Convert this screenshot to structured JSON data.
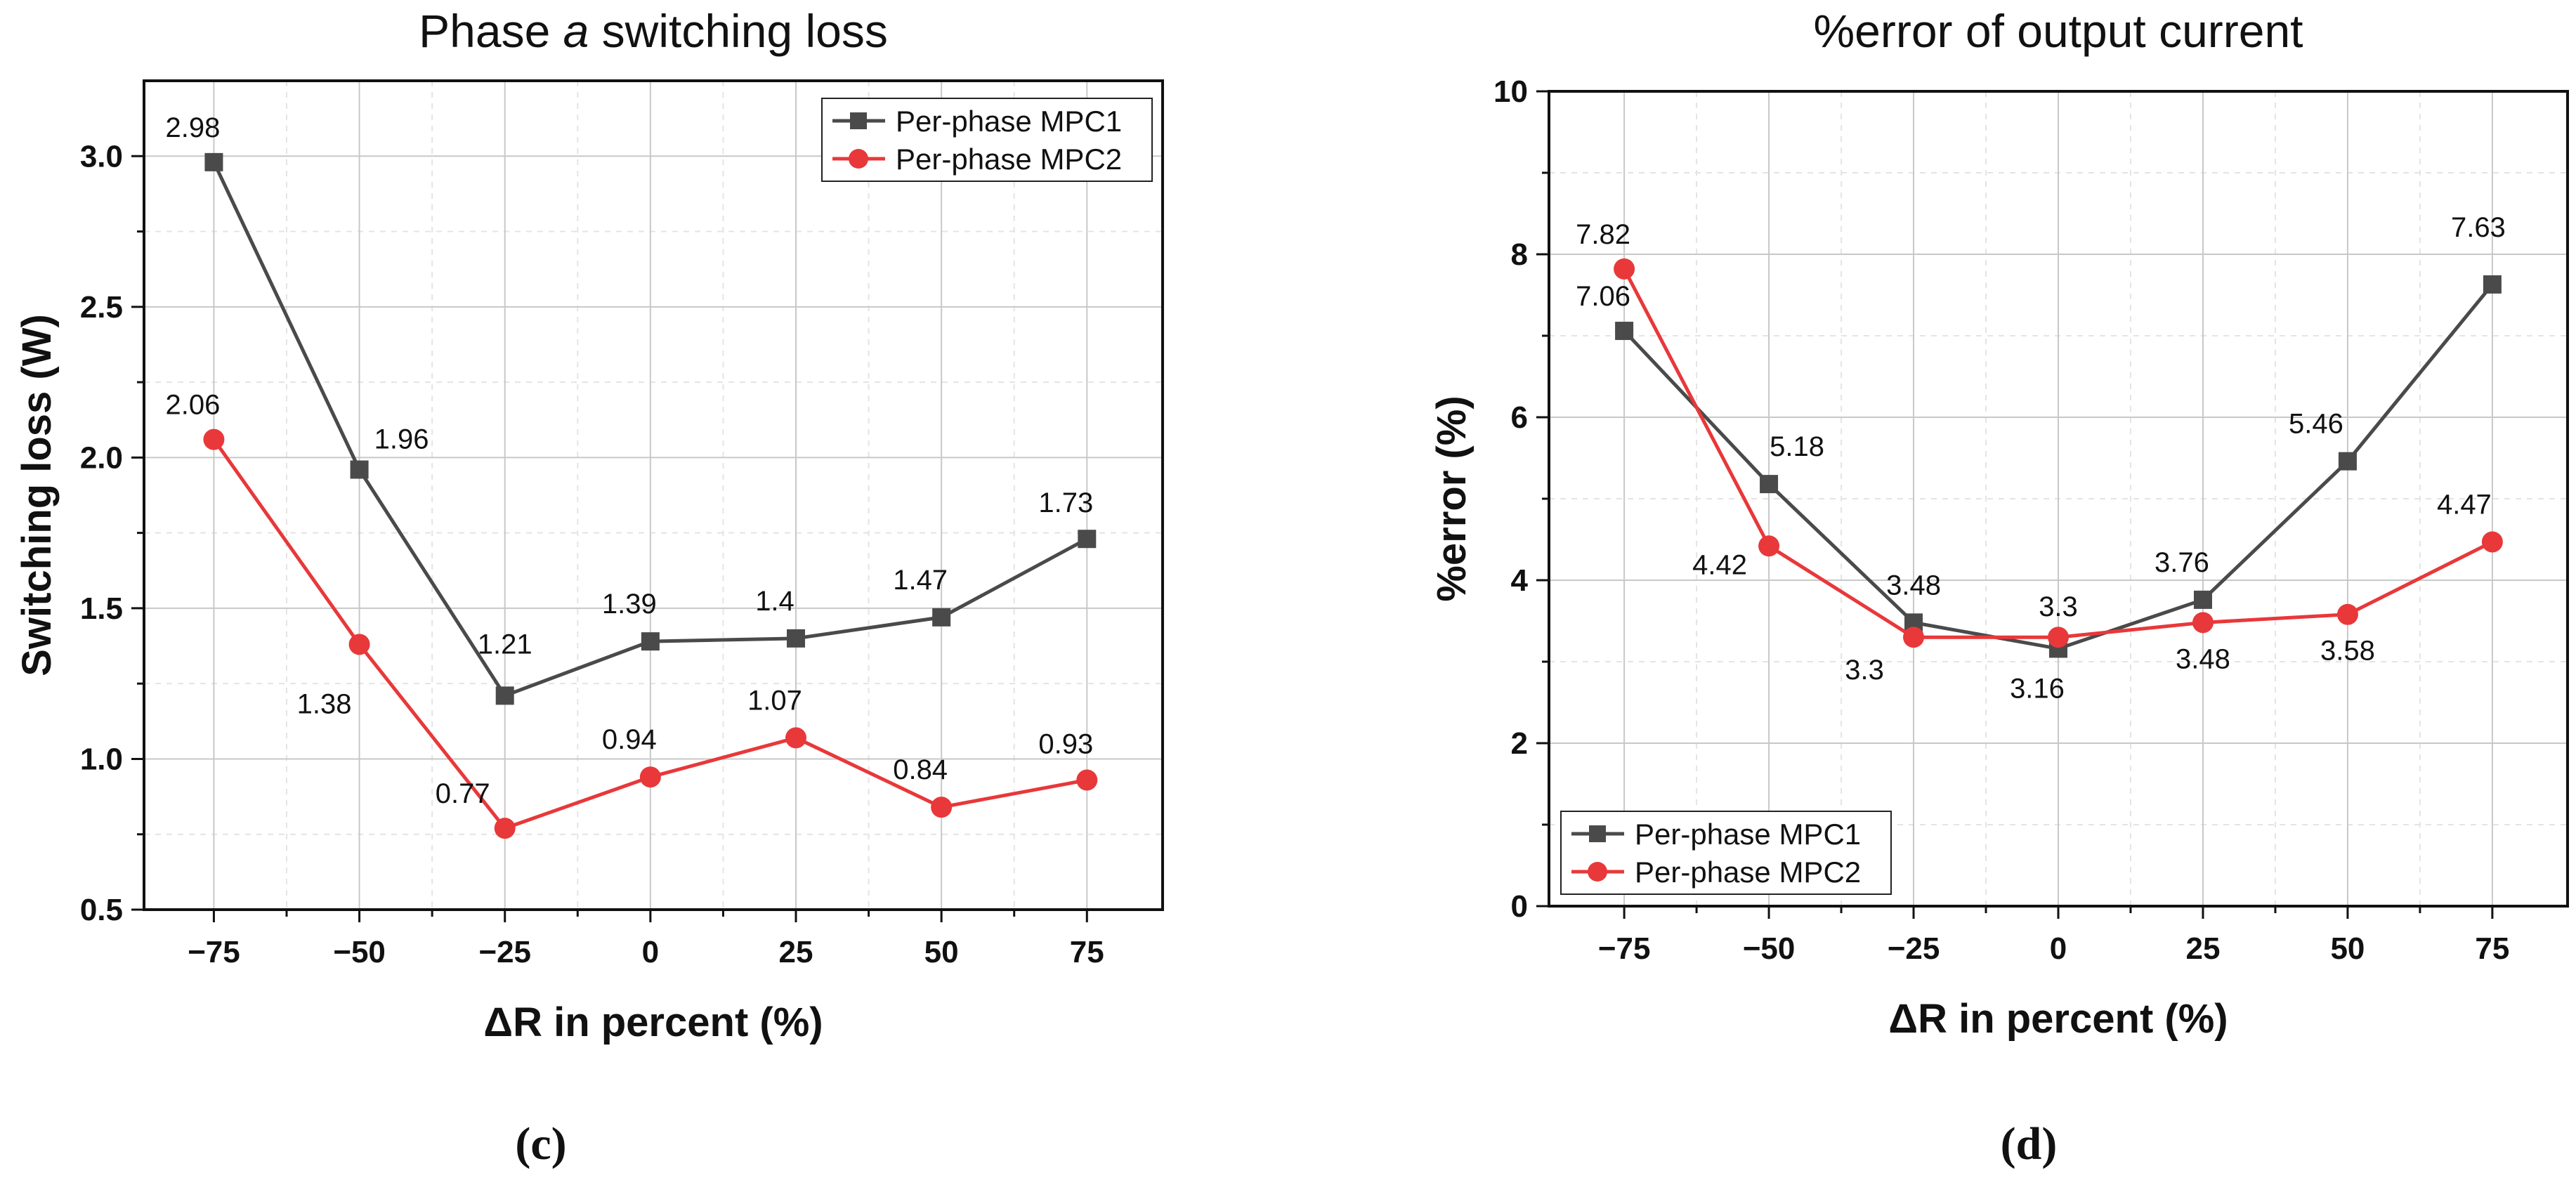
{
  "chart_data": [
    {
      "type": "line",
      "panel_label": "(c)",
      "title_pre": "Phase ",
      "title_italic": "a",
      "title_post": " switching loss",
      "xlabel": "ΔR in percent (%)",
      "ylabel": "Switching loss (W)",
      "x": [
        -75,
        -50,
        -25,
        0,
        25,
        50,
        75
      ],
      "x_tick_labels": [
        "−75",
        "−50",
        "−25",
        "0",
        "25",
        "50",
        "75"
      ],
      "xlim": [
        -87,
        88
      ],
      "ylim": [
        0.5,
        3.25
      ],
      "y_ticks": [
        0.5,
        1.0,
        1.5,
        2.0,
        2.5,
        3.0
      ],
      "y_tick_labels": [
        "0.5",
        "1.0",
        "1.5",
        "2.0",
        "2.5",
        "3.0"
      ],
      "legend_position": "top-right",
      "series": [
        {
          "name": "Per-phase MPC1",
          "color": "#4a4a4a",
          "marker": "square",
          "values": [
            2.98,
            1.96,
            1.21,
            1.39,
            1.4,
            1.47,
            1.73
          ],
          "labels": [
            "2.98",
            "1.96",
            "1.21",
            "1.39",
            "1.4",
            "1.47",
            "1.73"
          ]
        },
        {
          "name": "Per-phase MPC2",
          "color": "#e8383a",
          "marker": "circle",
          "values": [
            2.06,
            1.38,
            0.77,
            0.94,
            1.07,
            0.84,
            0.93
          ],
          "labels": [
            "2.06",
            "1.38",
            "0.77",
            "0.94",
            "1.07",
            "0.84",
            "0.93"
          ]
        }
      ]
    },
    {
      "type": "line",
      "panel_label": "(d)",
      "title_pre": "%error of output current",
      "title_italic": "",
      "title_post": "",
      "xlabel": "ΔR in percent (%)",
      "ylabel": "%error (%)",
      "x": [
        -75,
        -50,
        -25,
        0,
        25,
        50,
        75
      ],
      "x_tick_labels": [
        "−75",
        "−50",
        "−25",
        "0",
        "25",
        "50",
        "75"
      ],
      "xlim": [
        -88,
        88
      ],
      "ylim": [
        0,
        10
      ],
      "y_ticks": [
        0,
        2,
        4,
        6,
        8,
        10
      ],
      "y_tick_labels": [
        "0",
        "2",
        "4",
        "6",
        "8",
        "10"
      ],
      "legend_position": "bottom-left",
      "series": [
        {
          "name": "Per-phase MPC1",
          "color": "#4a4a4a",
          "marker": "square",
          "values": [
            7.06,
            5.18,
            3.48,
            3.16,
            3.76,
            5.46,
            7.63
          ],
          "labels": [
            "7.06",
            "5.18",
            "3.48",
            "3.16",
            "3.76",
            "5.46",
            "7.63"
          ]
        },
        {
          "name": "Per-phase MPC2",
          "color": "#e8383a",
          "marker": "circle",
          "values": [
            7.82,
            4.42,
            3.3,
            3.3,
            3.48,
            3.58,
            4.47
          ],
          "labels": [
            "7.82",
            "4.42",
            "3.3",
            "3.3",
            "3.48",
            "3.58",
            "4.47"
          ]
        }
      ]
    }
  ]
}
